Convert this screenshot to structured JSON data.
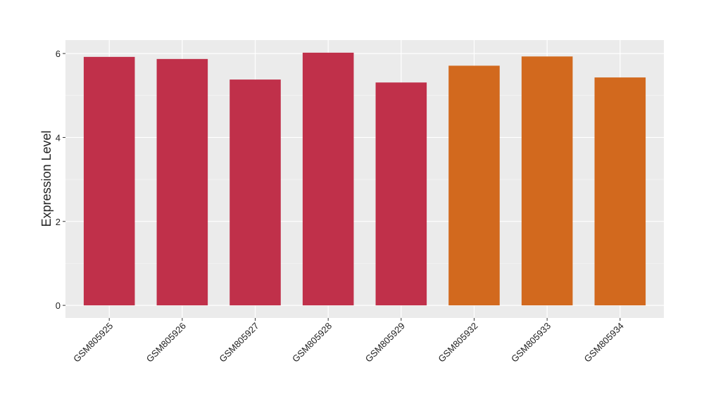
{
  "chart_data": {
    "type": "bar",
    "y_label": "Expression Level",
    "categories": [
      "GSM805925",
      "GSM805926",
      "GSM805927",
      "GSM805928",
      "GSM805929",
      "GSM805932",
      "GSM805933",
      "GSM805934"
    ],
    "values": [
      5.92,
      5.87,
      5.38,
      6.02,
      5.31,
      5.71,
      5.93,
      5.43
    ],
    "colors": [
      "#c0304a",
      "#c0304a",
      "#c0304a",
      "#c0304a",
      "#c0304a",
      "#d2691e",
      "#d2691e",
      "#d2691e"
    ],
    "ylim": [
      -0.3,
      6.32
    ],
    "yticks": [
      0,
      2,
      4,
      6
    ],
    "minor_yticks": [
      1,
      3,
      5
    ],
    "grid": true
  }
}
